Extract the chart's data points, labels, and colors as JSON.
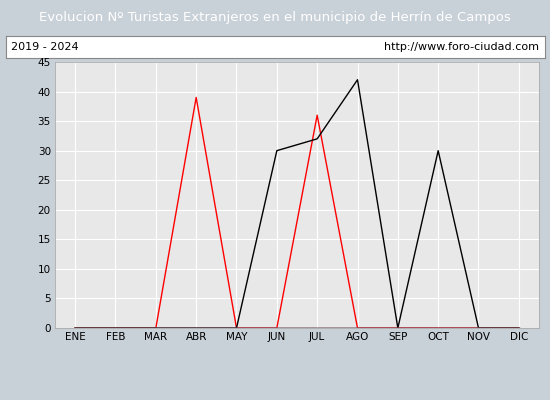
{
  "title": "Evolucion Nº Turistas Extranjeros en el municipio de Herrín de Campos",
  "subtitle_left": "2019 - 2024",
  "subtitle_right": "http://www.foro-ciudad.com",
  "months": [
    "ENE",
    "FEB",
    "MAR",
    "ABR",
    "MAY",
    "JUN",
    "JUL",
    "AGO",
    "SEP",
    "OCT",
    "NOV",
    "DIC"
  ],
  "series": {
    "2024": [
      0,
      0,
      0,
      39,
      0,
      0,
      36,
      0,
      0,
      0,
      0,
      0
    ],
    "2023": [
      0,
      0,
      0,
      0,
      0,
      30,
      32,
      42,
      0,
      30,
      0,
      0
    ],
    "2022": [
      0,
      0,
      0,
      0,
      0,
      0,
      0,
      0,
      0,
      0,
      0,
      0
    ],
    "2021": [
      0,
      0,
      0,
      0,
      0,
      0,
      0,
      0,
      0,
      0,
      0,
      0
    ],
    "2020": [
      0,
      0,
      0,
      0,
      0,
      0,
      0,
      0,
      0,
      0,
      0,
      0
    ],
    "2019": [
      0,
      0,
      0,
      0,
      0,
      0,
      0,
      0,
      0,
      0,
      0,
      0
    ]
  },
  "colors": {
    "2024": "#ff0000",
    "2023": "#000000",
    "2022": "#0000ff",
    "2021": "#00cc00",
    "2020": "#ffa500",
    "2019": "#9900aa"
  },
  "ylim": [
    0,
    45
  ],
  "yticks": [
    0,
    5,
    10,
    15,
    20,
    25,
    30,
    35,
    40,
    45
  ],
  "title_bg_color": "#4472c4",
  "title_text_color": "#ffffff",
  "plot_bg_color": "#e8e8e8",
  "grid_color": "#ffffff",
  "fig_bg_color": "#c8d0d8",
  "subtitle_box_color": "#ffffff",
  "subtitle_border_color": "#888888",
  "subtitle_text_color": "#000000"
}
